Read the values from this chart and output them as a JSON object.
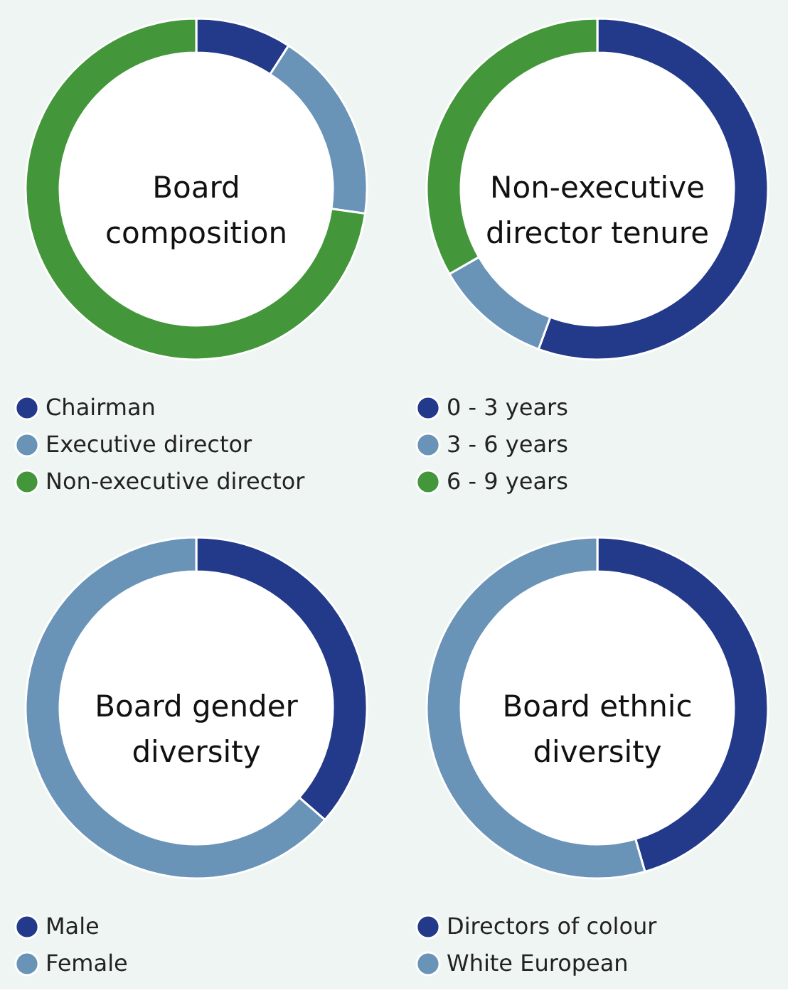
{
  "chart_data": [
    {
      "type": "donut",
      "title": "Board composition",
      "categories": [
        "Chairman",
        "Executive director",
        "Non-executive director"
      ],
      "values": [
        9.1,
        18.2,
        72.7
      ],
      "colors": [
        "#233a8a",
        "#6a93b8",
        "#43973a"
      ],
      "legend": "bottom"
    },
    {
      "type": "donut",
      "title": "Non-executive director tenure",
      "categories": [
        "0 - 3 years",
        "3 - 6 years",
        "6 - 9 years"
      ],
      "values": [
        55.6,
        11.1,
        33.3
      ],
      "colors": [
        "#233a8a",
        "#6a93b8",
        "#43973a"
      ],
      "legend": "bottom"
    },
    {
      "type": "donut",
      "title": "Board gender diversity",
      "categories": [
        "Male",
        "Female"
      ],
      "values": [
        36.4,
        63.6
      ],
      "colors": [
        "#233a8a",
        "#6a93b8"
      ],
      "legend": "bottom"
    },
    {
      "type": "donut",
      "title": "Board ethnic diversity",
      "categories": [
        "Directors of colour",
        "White European"
      ],
      "values": [
        45.5,
        54.5
      ],
      "colors": [
        "#233a8a",
        "#6a93b8"
      ],
      "legend": "bottom"
    }
  ]
}
